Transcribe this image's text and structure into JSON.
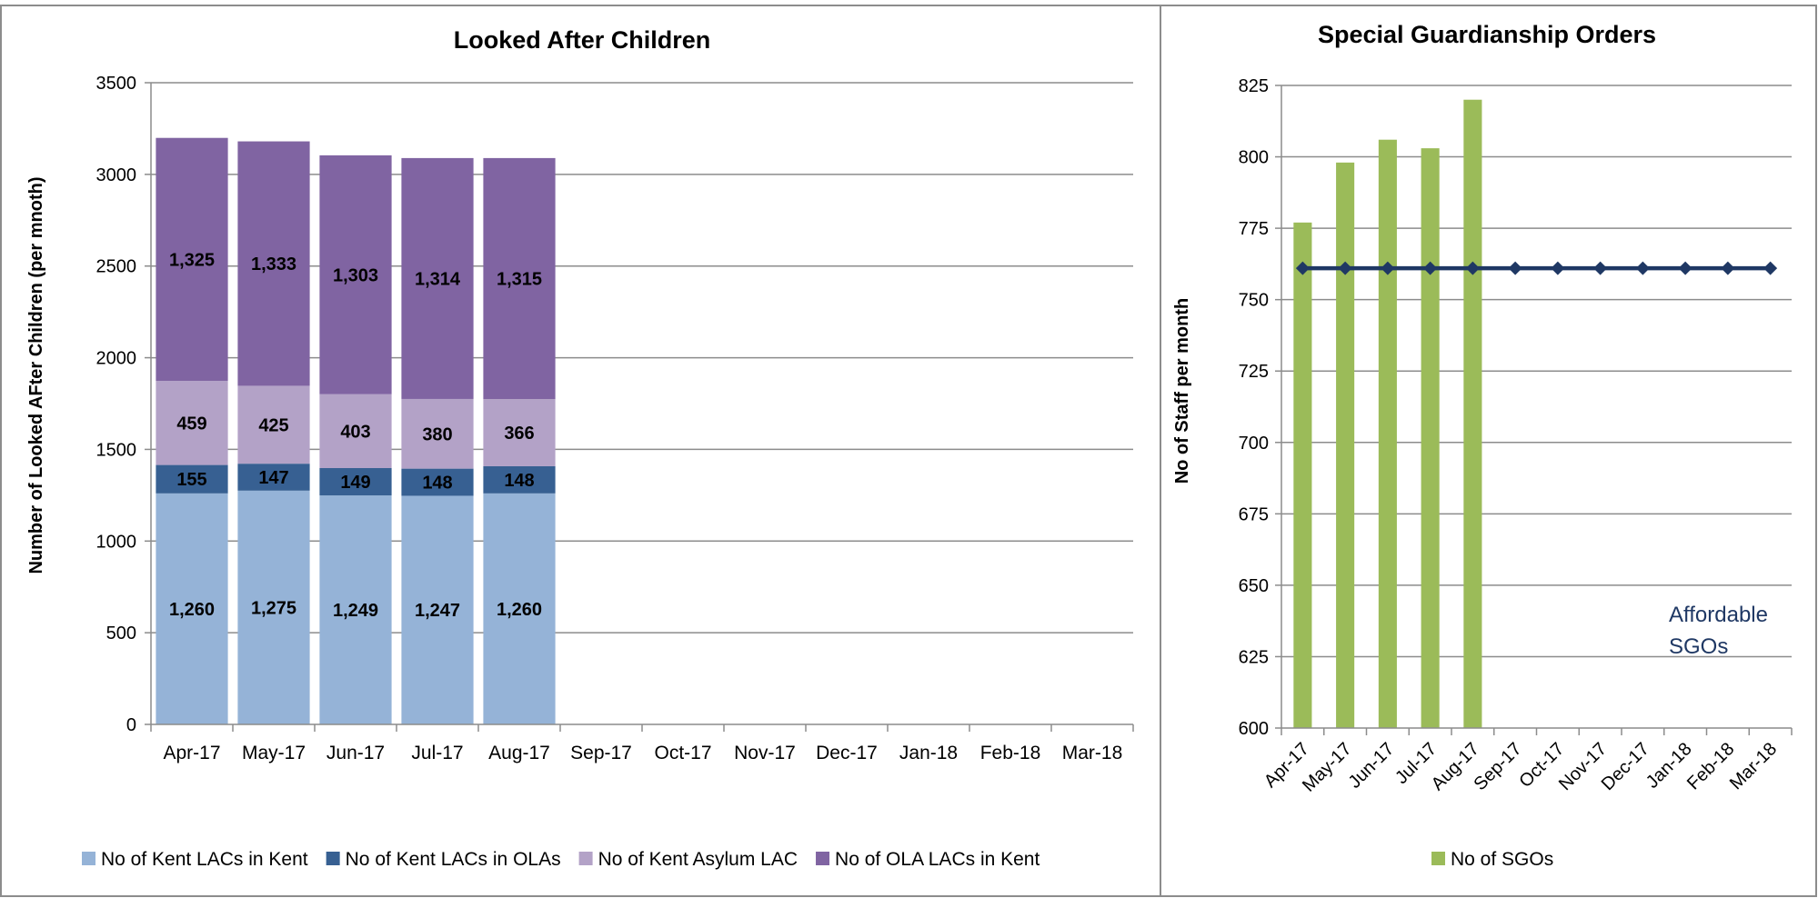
{
  "colors": {
    "kent_in_kent": "#95B3D7",
    "kent_in_olas": "#376092",
    "asylum": "#B3A2C7",
    "ola_in_kent": "#8064A2",
    "sgo_bar": "#9BBB59",
    "affordable_line": "#1F3864",
    "grid": "#8C8C8C",
    "border": "#8C8C8C"
  },
  "chart_data": [
    {
      "type": "bar",
      "stacked": true,
      "title": "Looked After Children",
      "ylabel": "Number of Looked AFter Children (per mnoth)",
      "xlabel": "",
      "ylim": [
        0,
        3500
      ],
      "yticks": [
        "0",
        "500",
        "1000",
        "1500",
        "2000",
        "2500",
        "3000",
        "3500"
      ],
      "grid": true,
      "legend_position": "bottom",
      "categories": [
        "Apr-17",
        "May-17",
        "Jun-17",
        "Jul-17",
        "Aug-17",
        "Sep-17",
        "Oct-17",
        "Nov-17",
        "Dec-17",
        "Jan-18",
        "Feb-18",
        "Mar-18"
      ],
      "series": [
        {
          "name": "No of Kent LACs in Kent",
          "color_key": "kent_in_kent",
          "values": [
            1260,
            1275,
            1249,
            1247,
            1260,
            null,
            null,
            null,
            null,
            null,
            null,
            null
          ],
          "labels": [
            "1,260",
            "1,275",
            "1,249",
            "1,247",
            "1,260"
          ]
        },
        {
          "name": "No of Kent LACs in OLAs",
          "color_key": "kent_in_olas",
          "values": [
            155,
            147,
            149,
            148,
            148,
            null,
            null,
            null,
            null,
            null,
            null,
            null
          ],
          "labels": [
            "155",
            "147",
            "149",
            "148",
            "148"
          ]
        },
        {
          "name": "No of Kent Asylum LAC",
          "color_key": "asylum",
          "values": [
            459,
            425,
            403,
            380,
            366,
            null,
            null,
            null,
            null,
            null,
            null,
            null
          ],
          "labels": [
            "459",
            "425",
            "403",
            "380",
            "366"
          ]
        },
        {
          "name": "No of OLA LACs in Kent",
          "color_key": "ola_in_kent",
          "values": [
            1325,
            1333,
            1303,
            1314,
            1315,
            null,
            null,
            null,
            null,
            null,
            null,
            null
          ],
          "labels": [
            "1,325",
            "1,333",
            "1,303",
            "1,314",
            "1,315"
          ]
        }
      ]
    },
    {
      "type": "bar",
      "title": "Special Guardianship Orders",
      "ylabel": "No of Staff per month",
      "xlabel": "",
      "ylim": [
        600,
        825
      ],
      "yticks": [
        "600",
        "625",
        "650",
        "675",
        "700",
        "725",
        "750",
        "775",
        "800",
        "825"
      ],
      "grid": true,
      "legend_position": "bottom",
      "categories": [
        "Apr-17",
        "May-17",
        "Jun-17",
        "Jul-17",
        "Aug-17",
        "Sep-17",
        "Oct-17",
        "Nov-17",
        "Dec-17",
        "Jan-18",
        "Feb-18",
        "Mar-18"
      ],
      "series": [
        {
          "name": "No of SGOs",
          "color_key": "sgo_bar",
          "values": [
            777,
            798,
            806,
            803,
            820,
            null,
            null,
            null,
            null,
            null,
            null,
            null
          ]
        }
      ],
      "line": {
        "values": [
          761,
          761,
          761,
          761,
          761,
          761,
          761,
          761,
          761,
          761,
          761,
          761
        ],
        "color_key": "affordable_line",
        "annotation_lines": [
          "Affordable",
          "SGOs"
        ]
      }
    }
  ]
}
